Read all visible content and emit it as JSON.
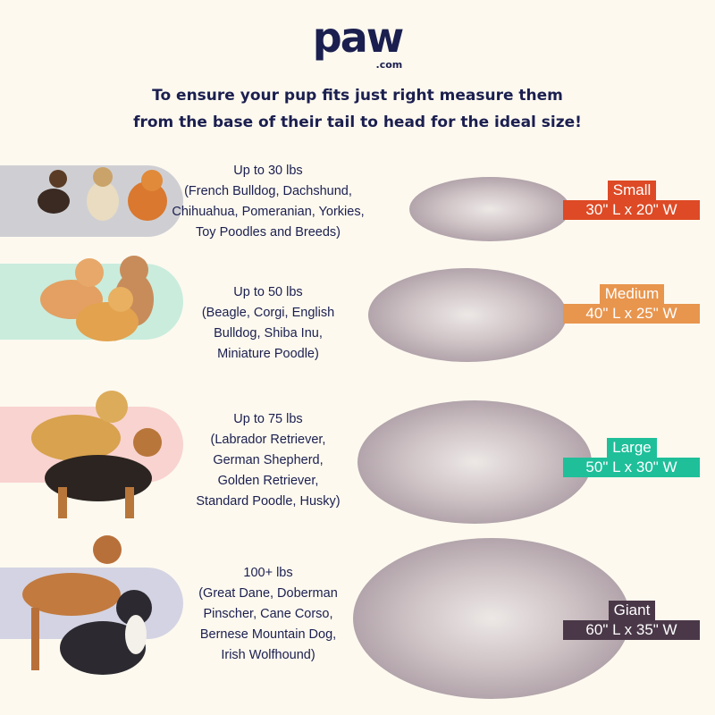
{
  "logo": {
    "name": "paw",
    "suffix": ".com"
  },
  "headline": [
    "To ensure your pup fits just right measure them",
    "from the base of their tail to head for the ideal size!"
  ],
  "sizes": [
    {
      "weight": "Up to 30 lbs",
      "breeds": [
        "(French Bulldog, Dachshund,",
        "Chihuahua, Pomeranian, Yorkies,",
        "Toy Poodles and Breeds)"
      ],
      "name": "Small",
      "dims": "30\" L x 20\" W",
      "color": "#dd4a25",
      "pill": "#cfcfd3"
    },
    {
      "weight": "Up to 50 lbs",
      "breeds": [
        "(Beagle, Corgi, English",
        "Bulldog, Shiba Inu,",
        "Miniature Poodle)"
      ],
      "name": "Medium",
      "dims": "40\" L x 25\" W",
      "color": "#e8954e",
      "pill": "#c9ecdd"
    },
    {
      "weight": "Up to 75 lbs",
      "breeds": [
        "(Labrador Retriever,",
        "German Shepherd,",
        "Golden Retriever,",
        "Standard Poodle, Husky)"
      ],
      "name": "Large",
      "dims": "50\" L x 30\" W",
      "color": "#1fbf9a",
      "pill": "#f8d3cf"
    },
    {
      "weight": "100+ lbs",
      "breeds": [
        "(Great Dane, Doberman",
        "Pinscher, Cane Corso,",
        "Bernese Mountain Dog,",
        "Irish Wolfhound)"
      ],
      "name": "Giant",
      "dims": "60\" L x 35\" W",
      "color": "#4a3848",
      "pill": "#d3d3e3"
    }
  ]
}
